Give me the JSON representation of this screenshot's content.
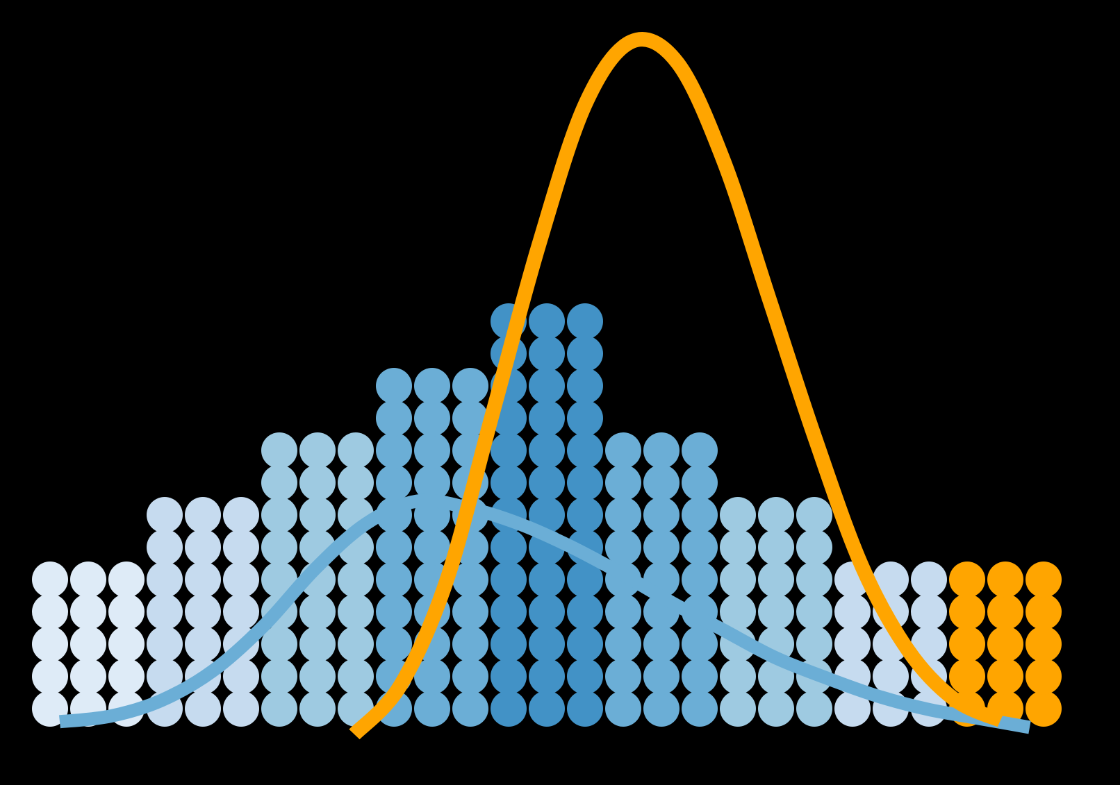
{
  "chart_data": {
    "type": "bar",
    "style": "dot histogram with overlaid density curves",
    "background": "#000000",
    "column_counts": [
      5,
      5,
      5,
      7,
      7,
      7,
      9,
      9,
      9,
      11,
      11,
      11,
      13,
      13,
      13,
      9,
      9,
      9,
      7,
      7,
      7,
      5,
      5,
      5,
      5,
      5,
      5
    ],
    "group_colors": [
      "#DEEBF7",
      "#C6DBEF",
      "#9ECAE1",
      "#6BAED6",
      "#4292C6",
      "#6BAED6",
      "#9ECAE1",
      "#C6DBEF",
      "#FFA500"
    ],
    "columns_per_group": 3,
    "curves": [
      {
        "color": "#6BAED6",
        "y_values": [
          0.025,
          0.05,
          0.12,
          0.25,
          0.45,
          0.7,
          0.9,
          1.0,
          0.97,
          0.9,
          0.8,
          0.68,
          0.55,
          0.43,
          0.31,
          0.22,
          0.14,
          0.08,
          0.04,
          0.0
        ]
      },
      {
        "color": "#FFA500",
        "y_values": [
          0.0,
          0.07,
          0.22,
          0.46,
          0.7,
          0.9,
          0.99,
          0.96,
          0.82,
          0.62,
          0.42,
          0.24,
          0.12,
          0.05,
          0.02
        ]
      }
    ]
  }
}
